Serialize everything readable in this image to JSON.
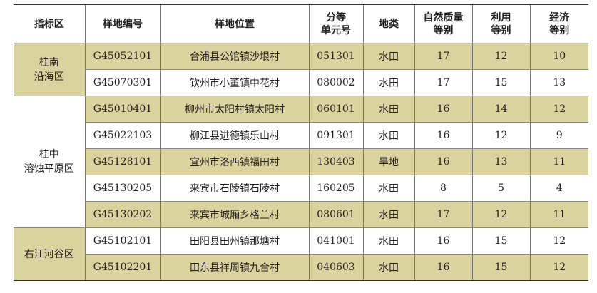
{
  "table": {
    "headers": [
      "指标区",
      "样地编号",
      "样地位置",
      "分等\n单元号",
      "地类",
      "自然质量\n等别",
      "利用\n等别",
      "经济\n等别"
    ],
    "groups": [
      {
        "region": "桂南\n沿海区",
        "shaded": true,
        "rows": [
          [
            "G45052101",
            "合浦县公馆镇沙垠村",
            "051301",
            "水田",
            "17",
            "12",
            "10"
          ],
          [
            "G45070301",
            "钦州市小董镇中花村",
            "080002",
            "水田",
            "17",
            "15",
            "13"
          ]
        ]
      },
      {
        "region": "桂中\n溶蚀平原区",
        "shaded": false,
        "rows": [
          [
            "G45010401",
            "柳州市太阳村镇太阳村",
            "060101",
            "水田",
            "16",
            "14",
            "12"
          ],
          [
            "G45022103",
            "柳江县进德镇乐山村",
            "091301",
            "水田",
            "16",
            "12",
            "9"
          ],
          [
            "G45128101",
            "宜州市洛西镇福田村",
            "130403",
            "旱地",
            "16",
            "13",
            "11"
          ],
          [
            "G45130205",
            "来宾市石陵镇石陵村",
            "160205",
            "水田",
            "8",
            "5",
            "4"
          ],
          [
            "G45130202",
            "来宾市城厢乡格兰村",
            "080601",
            "水田",
            "17",
            "12",
            "11"
          ]
        ]
      },
      {
        "region": "右江河谷区",
        "shaded": true,
        "rows": [
          [
            "G45102101",
            "田阳县田州镇那塘村",
            "041001",
            "水田",
            "16",
            "15",
            "12"
          ],
          [
            "G45102201",
            "田东县祥周镇九合村",
            "040603",
            "水田",
            "16",
            "15",
            "12"
          ]
        ]
      }
    ],
    "shade_color": "#dbd39e"
  }
}
